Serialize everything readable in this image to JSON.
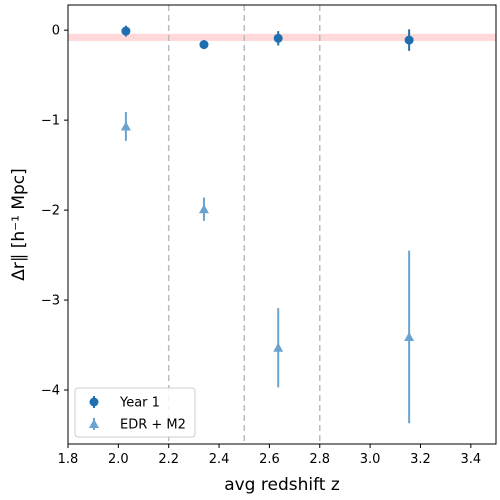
{
  "chart_data": {
    "type": "scatter",
    "xlabel": "avg redshift z",
    "ylabel": "Δr∥ [h⁻¹ Mpc]",
    "xlim": [
      1.8,
      3.5
    ],
    "ylim": [
      -4.6,
      0.28
    ],
    "xticks": [
      "1.8",
      "2.0",
      "2.2",
      "2.4",
      "2.6",
      "2.8",
      "3.0",
      "3.2",
      "3.4"
    ],
    "yticks": [
      "0",
      "−1",
      "−2",
      "−3",
      "−4"
    ],
    "vertical_dashed_lines_x": [
      2.2,
      2.5,
      2.8
    ],
    "reference_band": {
      "y_low": -0.12,
      "y_high": -0.04,
      "color": "#ffcccc"
    },
    "legend_position": "lower-left",
    "series": [
      {
        "name": "Year 1",
        "marker": "circle",
        "color": "#1f6fb0",
        "points": [
          {
            "x": 2.03,
            "y": -0.01,
            "err": 0.06
          },
          {
            "x": 2.34,
            "y": -0.16,
            "err": 0.05
          },
          {
            "x": 2.635,
            "y": -0.09,
            "err": 0.08
          },
          {
            "x": 3.155,
            "y": -0.11,
            "err": 0.12
          }
        ]
      },
      {
        "name": "EDR + M2",
        "marker": "triangle",
        "color": "#6aa3cf",
        "points": [
          {
            "x": 2.03,
            "y": -1.07,
            "err": 0.16
          },
          {
            "x": 2.34,
            "y": -1.99,
            "err": 0.13
          },
          {
            "x": 2.635,
            "y": -3.53,
            "err": 0.44
          },
          {
            "x": 3.155,
            "y": -3.41,
            "err": 0.96
          }
        ]
      }
    ]
  }
}
